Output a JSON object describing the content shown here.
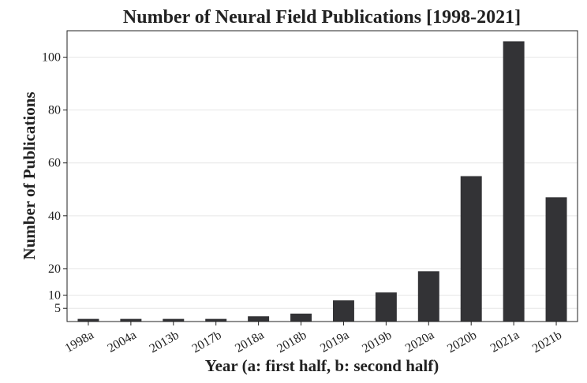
{
  "chart_data": {
    "type": "bar",
    "title": "Number of Neural Field Publications [1998-2021]",
    "xlabel": "Year (a: first half, b: second half)",
    "ylabel": "Number of Publications",
    "categories": [
      "1998a",
      "2004a",
      "2013b",
      "2017b",
      "2018a",
      "2018b",
      "2019a",
      "2019b",
      "2020a",
      "2020b",
      "2021a",
      "2021b"
    ],
    "values": [
      1,
      1,
      1,
      1,
      2,
      3,
      8,
      11,
      19,
      55,
      106,
      47
    ],
    "ylim": [
      0,
      110
    ],
    "yticks": [
      5,
      10,
      20,
      40,
      60,
      80,
      100
    ],
    "grid": true,
    "bar_color": "#333336"
  }
}
